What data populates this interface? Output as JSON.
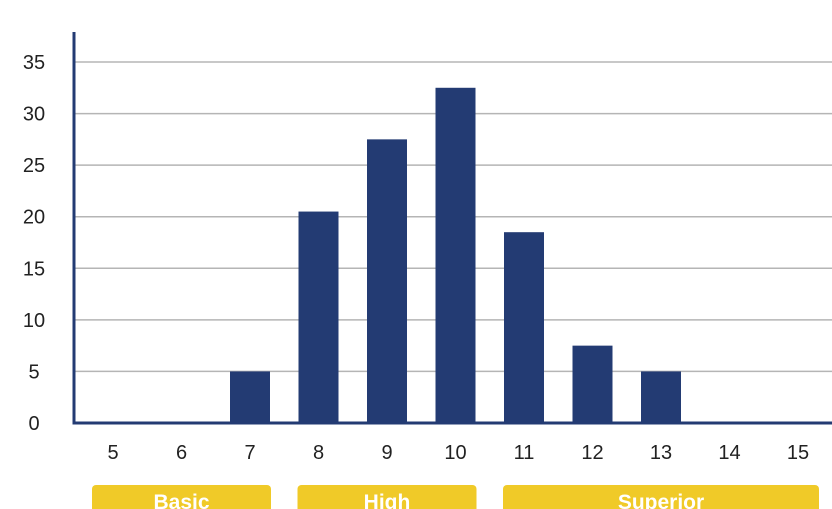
{
  "chart_data": {
    "type": "bar",
    "title": "",
    "xlabel": "",
    "ylabel": "",
    "categories": [
      "5",
      "6",
      "7",
      "8",
      "9",
      "10",
      "11",
      "12",
      "13",
      "14",
      "15"
    ],
    "values": [
      0,
      0,
      5,
      20.5,
      27.5,
      32.5,
      18.5,
      7.5,
      5,
      0,
      0
    ],
    "y_ticks": [
      0,
      5,
      10,
      15,
      20,
      25,
      30,
      35
    ],
    "ylim": [
      0,
      35
    ],
    "grid": true,
    "legend": "none",
    "colors": {
      "bar": "#233b73",
      "axis": "#233b73",
      "grid": "#b5b5b5",
      "band": "#f0ca28"
    },
    "bands": [
      {
        "label": "Basic",
        "from": "5",
        "to": "7"
      },
      {
        "label": "High",
        "from": "8",
        "to": "10"
      },
      {
        "label": "Superior",
        "from": "11",
        "to": "15"
      }
    ]
  }
}
